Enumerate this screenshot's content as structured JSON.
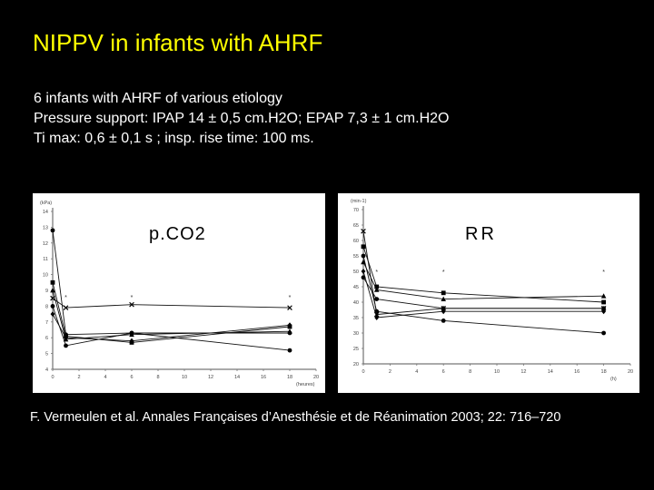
{
  "slide": {
    "title": "NIPPV in infants with AHRF",
    "bullets": [
      "6 infants with AHRF of various etiology",
      "Pressure support: IPAP 14 ± 0,5 cm.H2O; EPAP 7,3 ± 1 cm.H2O",
      "Ti max: 0,6 ± 0,1 s ; insp. rise time: 100 ms."
    ],
    "reference": "F. Vermeulen et al.  Annales Françaises d’Anesthésie et de Réanimation 2003; 22: 716–720"
  },
  "chart_data": [
    {
      "type": "line",
      "label": "p.CO2",
      "yunit": "(kPa)",
      "xunit": "(heures)",
      "xlim": [
        0,
        20
      ],
      "ylim": [
        4,
        14
      ],
      "xticks": [
        0,
        2,
        4,
        6,
        8,
        10,
        12,
        14,
        16,
        18,
        20
      ],
      "xtick_labels": [
        "0",
        "2",
        "4",
        "6",
        "8",
        "10",
        "12",
        "14",
        "16",
        "18",
        "20"
      ],
      "yticks": [
        4,
        5,
        6,
        7,
        8,
        9,
        10,
        11,
        12,
        13,
        14
      ],
      "ytick_labels": [
        "4",
        "5",
        "6",
        "7",
        "8",
        "9",
        "10",
        "11",
        "12",
        "13",
        "14"
      ],
      "x": [
        0,
        1,
        6,
        18
      ],
      "series": [
        {
          "marker": "circle",
          "values": [
            12.8,
            6.2,
            6.3,
            5.2
          ]
        },
        {
          "marker": "square",
          "values": [
            9.5,
            6.1,
            5.7,
            6.7
          ]
        },
        {
          "marker": "triangle",
          "values": [
            9.0,
            5.9,
            6.2,
            6.4
          ]
        },
        {
          "marker": "cross",
          "values": [
            8.5,
            7.9,
            8.1,
            7.9
          ]
        },
        {
          "marker": "circle",
          "values": [
            8.0,
            5.5,
            6.3,
            6.3
          ]
        },
        {
          "marker": "diamond",
          "values": [
            7.5,
            6.0,
            5.8,
            6.8
          ]
        }
      ],
      "significance": [
        {
          "x": 1,
          "y": 8.6,
          "text": "*"
        },
        {
          "x": 6,
          "y": 8.6,
          "text": "*"
        },
        {
          "x": 18,
          "y": 8.6,
          "text": "*"
        }
      ]
    },
    {
      "type": "line",
      "label": "RR",
      "yunit": "(min-1)",
      "xunit": "(h)",
      "xlim": [
        0,
        20
      ],
      "ylim": [
        20,
        70
      ],
      "xticks": [
        0,
        2,
        4,
        6,
        8,
        10,
        12,
        14,
        16,
        18,
        20
      ],
      "xtick_labels": [
        "0",
        "2",
        "4",
        "6",
        "8",
        "10",
        "12",
        "14",
        "16",
        "18",
        "20"
      ],
      "yticks": [
        20,
        25,
        30,
        35,
        40,
        45,
        50,
        55,
        60,
        65,
        70
      ],
      "ytick_labels": [
        "20",
        "25",
        "30",
        "35",
        "40",
        "45",
        "50",
        "55",
        "60",
        "65",
        "70"
      ],
      "x": [
        0,
        1,
        6,
        18
      ],
      "series": [
        {
          "marker": "square",
          "values": [
            58,
            45,
            43,
            40
          ]
        },
        {
          "marker": "circle",
          "values": [
            55,
            37,
            34,
            30
          ]
        },
        {
          "marker": "triangle",
          "values": [
            53,
            44,
            41,
            42
          ]
        },
        {
          "marker": "cross",
          "values": [
            63,
            36,
            38,
            38
          ]
        },
        {
          "marker": "diamond",
          "values": [
            50,
            35,
            37,
            37
          ]
        },
        {
          "marker": "circle",
          "values": [
            48,
            41,
            38,
            38
          ]
        }
      ],
      "significance": [
        {
          "x": 1,
          "y": 50,
          "text": "*"
        },
        {
          "x": 6,
          "y": 50,
          "text": "*"
        },
        {
          "x": 18,
          "y": 50,
          "text": "*"
        }
      ]
    }
  ]
}
